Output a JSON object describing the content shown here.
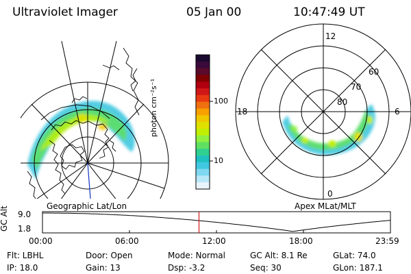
{
  "header": {
    "instrument": "Ultraviolet Imager",
    "date": "05 Jan 00",
    "time": "10:47:49 UT"
  },
  "colorbar": {
    "unit_label": "photon cm⁻²s⁻¹",
    "ticks": [
      "100",
      "10"
    ],
    "colors": [
      "#1a0a2e",
      "#3a0a3a",
      "#5a0a2a",
      "#800000",
      "#b00010",
      "#d01818",
      "#e83a10",
      "#f07010",
      "#f8a000",
      "#f0c800",
      "#e0e000",
      "#c0f000",
      "#90f040",
      "#60e060",
      "#30d090",
      "#20c0c0",
      "#40c8e0",
      "#80d8f0",
      "#b8e8f8",
      "#e8f4fc"
    ]
  },
  "geo_panel": {
    "label": "Geographic Lat/Lon"
  },
  "mlt_panel": {
    "label": "Apex MLat/MLT",
    "hour_labels": [
      "12",
      "18",
      "6",
      "0"
    ],
    "lat_labels": [
      "60",
      "70",
      "80"
    ]
  },
  "altitude_plot": {
    "ylabel": "GC Alt",
    "yticks": [
      "9.0",
      "1.8"
    ],
    "xticks": [
      "00:00",
      "06:00",
      "12:00",
      "18:00",
      "23:59"
    ],
    "current_time_fraction": 0.4498,
    "marker_color": "#d01818"
  },
  "info": {
    "flt": "Flt:  LBHL",
    "ip": "IP:  18.0",
    "door": "Door:  Open",
    "gain": "Gain:  13",
    "mode": "Mode:  Normal",
    "dsp": "Dsp:      -3.2",
    "gcalt": "GC Alt:  8.1 Re",
    "seq": "Seq:  30",
    "glat": "GLat:   74.0",
    "glon": "GLon:  187.1"
  }
}
